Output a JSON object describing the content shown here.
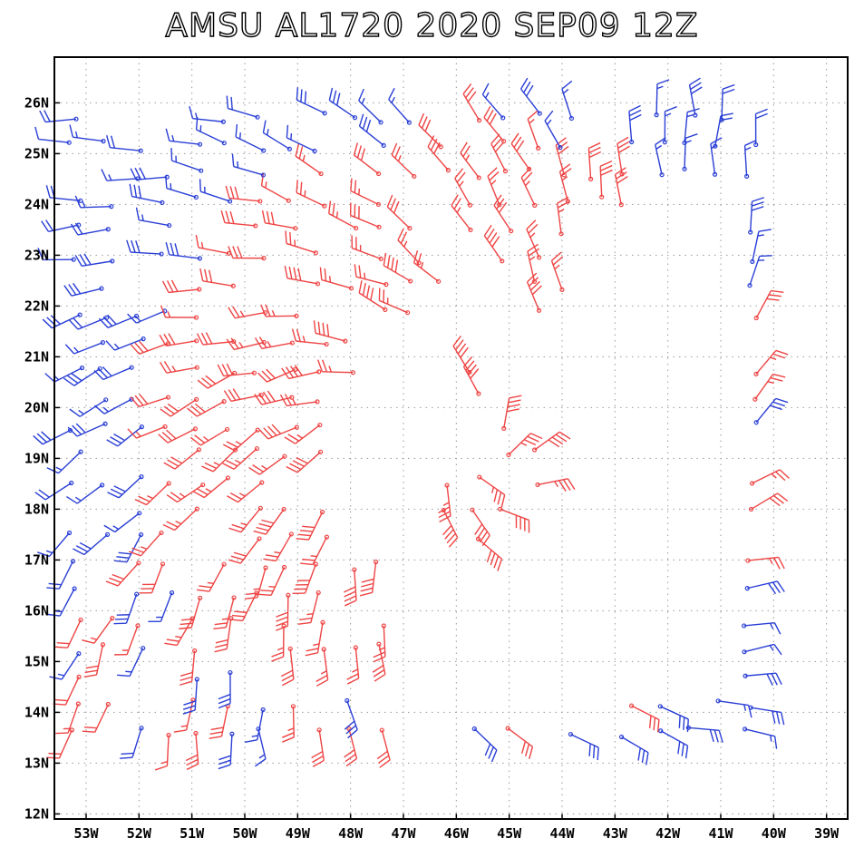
{
  "title": "AMSU AL1720 2020 SEP09 12Z",
  "lon_labels": [
    "53W",
    "52W",
    "51W",
    "50W",
    "49W",
    "48W",
    "47W",
    "46W",
    "45W",
    "44W",
    "43W",
    "42W",
    "41W",
    "40W",
    "39W"
  ],
  "lat_labels": [
    "26N",
    "25N",
    "24N",
    "23N",
    "22N",
    "21N",
    "20N",
    "19N",
    "18N",
    "17N",
    "16N",
    "15N",
    "14N",
    "13N",
    "12N"
  ],
  "colors": {
    "blue": "#2a3fd6",
    "red": "#ef4444",
    "frame": "#000000",
    "grid": "#9a9a9a"
  },
  "chart_data": {
    "type": "scatter",
    "x_axis": {
      "range": [
        -53.6,
        -38.6
      ],
      "ticks": [
        -53,
        -52,
        -51,
        -50,
        -49,
        -48,
        -47,
        -46,
        -45,
        -44,
        -43,
        -42,
        -41,
        -40,
        -39
      ]
    },
    "y_axis": {
      "range": [
        11.9,
        26.9
      ],
      "ticks": [
        26,
        25,
        24,
        23,
        22,
        21,
        20,
        19,
        18,
        17,
        16,
        15,
        14,
        13,
        12
      ]
    },
    "grid": true,
    "storm_center": [
      -45.8,
      19.1
    ],
    "legend": "none"
  }
}
